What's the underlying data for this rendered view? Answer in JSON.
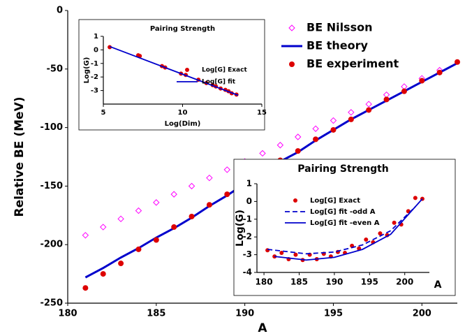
{
  "chart_data": [
    {
      "type": "scatter",
      "ylabel": "Relative BE (MeV)",
      "xlabel": "A",
      "xlim": [
        180,
        202
      ],
      "xticks": [
        180,
        185,
        190,
        195,
        200
      ],
      "ylim": [
        -250,
        0
      ],
      "yticks": [
        0,
        -50,
        -100,
        -150,
        -200,
        -250
      ],
      "series": [
        {
          "name": "BE Nilsson",
          "color": "#ff00ff",
          "mark": "diamond",
          "x": [
            181,
            182,
            183,
            184,
            185,
            186,
            187,
            188,
            189,
            190,
            191,
            192,
            193,
            194,
            195,
            196,
            197,
            198,
            199,
            200,
            201
          ],
          "values": [
            -192,
            -185,
            -178,
            -171,
            -164,
            -157,
            -150,
            -143,
            -136,
            -129,
            -122,
            -115,
            -108,
            -101,
            -94,
            -87,
            -80,
            -72,
            -65,
            -58,
            -51
          ]
        },
        {
          "name": "BE theory",
          "color": "#0000cc",
          "mark": "line",
          "x": [
            181,
            182,
            183,
            184,
            185,
            186,
            187,
            188,
            189,
            190,
            191,
            192,
            193,
            194,
            195,
            196,
            197,
            198,
            199,
            200,
            201,
            202
          ],
          "values": [
            -228,
            -220,
            -211,
            -203,
            -194,
            -186,
            -177,
            -167,
            -158,
            -148,
            -139,
            -129,
            -121,
            -111,
            -102,
            -93,
            -85,
            -77,
            -69,
            -61,
            -53,
            -45
          ]
        },
        {
          "name": "BE experiment",
          "color": "#dd0000",
          "mark": "circle",
          "x": [
            181,
            182,
            183,
            184,
            185,
            186,
            187,
            188,
            189,
            190,
            191,
            192,
            193,
            194,
            195,
            196,
            197,
            198,
            199,
            200,
            201,
            202
          ],
          "values": [
            -237,
            -225,
            -216,
            -204,
            -196,
            -185,
            -176,
            -166,
            -157,
            -147,
            -138,
            -128,
            -120,
            -110,
            -102,
            -93,
            -85,
            -76,
            -69,
            -60,
            -53,
            -44
          ]
        }
      ]
    },
    {
      "type": "scatter",
      "title": "Pairing Strength",
      "xlabel": "Log(Dim)",
      "ylabel": "Log(G)",
      "xlim": [
        5,
        15
      ],
      "xticks": [
        5,
        10,
        15
      ],
      "ylim": [
        -4,
        1
      ],
      "yticks": [
        1,
        0,
        -1,
        -2,
        -3
      ],
      "series": [
        {
          "name": "Log[G] Exact",
          "color": "#dd0000",
          "mark": "circle",
          "x": [
            5.4,
            7.2,
            7.3,
            8.7,
            8.9,
            9.9,
            10.2,
            11.0,
            11.5,
            11.9,
            12.1,
            12.4,
            12.7,
            12.9,
            13.1,
            13.4
          ],
          "values": [
            0.2,
            -0.4,
            -0.45,
            -1.2,
            -1.3,
            -1.75,
            -1.85,
            -2.2,
            -2.45,
            -2.6,
            -2.7,
            -2.85,
            -2.95,
            -3.05,
            -3.2,
            -3.3
          ]
        },
        {
          "name": "Log[G] fit",
          "color": "#0000cc",
          "mark": "line",
          "x": [
            5.4,
            13.5
          ],
          "values": [
            0.25,
            -3.35
          ]
        }
      ]
    },
    {
      "type": "scatter",
      "title": "Pairing Strength",
      "xlabel": "A",
      "ylabel": "Log(G)",
      "xlim": [
        179,
        203.5
      ],
      "xticks": [
        180,
        185,
        190,
        195,
        200
      ],
      "ylim": [
        -4,
        1
      ],
      "yticks": [
        1,
        0,
        -1,
        -2,
        -3,
        -4
      ],
      "series": [
        {
          "name": "Log[G] Exact",
          "color": "#dd0000",
          "mark": "circle",
          "x": [
            180.5,
            181.5,
            182.5,
            183.5,
            184.5,
            185.5,
            186.5,
            187.5,
            188.5,
            189.5,
            190.5,
            191.5,
            192.5,
            193.5,
            194.5,
            195.5,
            196.5,
            197.5,
            198.5,
            199.5,
            200.5,
            201.5,
            202.5
          ],
          "values": [
            -2.75,
            -3.1,
            -2.9,
            -3.25,
            -3.0,
            -3.3,
            -3.0,
            -3.25,
            -2.95,
            -3.1,
            -2.85,
            -2.9,
            -2.5,
            -2.65,
            -2.15,
            -2.3,
            -1.8,
            -1.9,
            -1.2,
            -1.3,
            -0.55,
            0.2,
            0.15
          ]
        },
        {
          "name": "Log[G] fit -odd A",
          "color": "#0000cc",
          "mark": "dashed",
          "x": [
            180.5,
            186,
            190,
            194,
            198,
            201.5
          ],
          "values": [
            -2.7,
            -2.95,
            -2.85,
            -2.45,
            -1.65,
            -0.3
          ]
        },
        {
          "name": "Log[G] fit -even A",
          "color": "#0000cc",
          "mark": "line",
          "x": [
            181.5,
            186,
            190,
            194,
            198,
            202.5
          ],
          "values": [
            -3.1,
            -3.3,
            -3.15,
            -2.7,
            -1.85,
            0.15
          ]
        }
      ]
    }
  ]
}
